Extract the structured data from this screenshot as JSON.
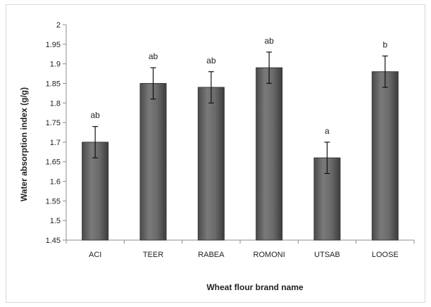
{
  "chart_data": {
    "type": "bar",
    "title": "",
    "xlabel": "Wheat flour brand name",
    "ylabel": "Water absorption index (g/g)",
    "ylim": [
      1.45,
      2
    ],
    "ytick_labels": [
      "1.45",
      "1.5",
      "1.55",
      "1.6",
      "1.65",
      "1.7",
      "1.75",
      "1.8",
      "1.85",
      "1.9",
      "1.95",
      "2"
    ],
    "categories": [
      "ACI",
      "TEER",
      "RABEA",
      "ROMONI",
      "UTSAB",
      "LOOSE"
    ],
    "values": [
      1.7,
      1.85,
      1.84,
      1.89,
      1.66,
      1.88
    ],
    "errors": [
      0.04,
      0.04,
      0.04,
      0.04,
      0.04,
      0.04
    ],
    "significance": [
      "ab",
      "ab",
      "ab",
      "ab",
      "a",
      "b"
    ],
    "grid": false,
    "legend": "none",
    "colors": {
      "bar_fill": "#6e6e6e",
      "bar_edge": "#3a3a3a",
      "axis": "#8c8c8c"
    }
  }
}
